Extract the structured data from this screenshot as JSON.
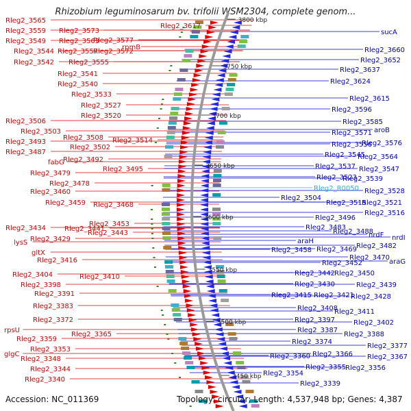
{
  "title": "Rhizobium leguminosarum bv. trifolii WSM2304, complete genom...",
  "accession": "Accession: NC_011369",
  "topology": "Topology: circular; Length: 4,537,948 bp; Genes: 4,387",
  "colors": {
    "left_label": "#d40000",
    "right_label": "#0000c8",
    "rna_label": "#2bb3c9",
    "backbone": "#9a9a9a",
    "tick": "#2a8a1c"
  },
  "kbp_ticks": [
    "3800 kbp",
    "3750 kbp",
    "3700 kbp",
    "3650 kbp",
    "3600 kbp",
    "3550 kbp",
    "3500 kbp",
    "3450 kbp"
  ],
  "left_labels": [
    "Rleg2_3565",
    "Rleg2_3559",
    "Rleg2_3549",
    "Rleg2_3544",
    "Rleg2_3542",
    "Rleg2_3573",
    "Rleg2_3563",
    "Rleg2_3557",
    "Rleg2_3555",
    "Rleg2_3541",
    "Rleg2_3540",
    "Rleg2_3533",
    "Rleg2_3527",
    "Rleg2_3520",
    "rpmB",
    "Rleg2_3577",
    "Rleg2_3572",
    "Rleg2_3617",
    "Rleg2_3506",
    "Rleg2_3503",
    "Rleg2_3493",
    "Rleg2_3487",
    "fabG",
    "Rleg2_3479",
    "Rleg2_3508",
    "Rleg2_3502",
    "Rleg2_3492",
    "Rleg2_3478",
    "Rleg2_3514",
    "Rleg2_3495",
    "Rleg2_3460",
    "Rleg2_3459",
    "Rleg2_3468",
    "Rleg2_3453",
    "Rleg2_3434",
    "Rleg2_3429",
    "lysS",
    "gltX",
    "Rleg2_3441",
    "Rleg2_3443",
    "Rleg2_3416",
    "Rleg2_3404",
    "Rleg2_3398",
    "Rleg2_3391",
    "Rleg2_3383",
    "Rleg2_3410",
    "Rleg2_3372",
    "rpsU",
    "Rleg2_3359",
    "Rleg2_3353",
    "glgC",
    "Rleg2_3348",
    "Rleg2_3344",
    "Rleg2_3340",
    "Rleg2_3365"
  ],
  "right_labels": [
    "sucA",
    "Rleg2_3660",
    "Rleg2_3652",
    "Rleg2_3637",
    "Rleg2_3624",
    "Rleg2_3615",
    "Rleg2_3596",
    "Rleg2_3585",
    "aroB",
    "Rleg2_3571",
    "Rleg2_3576",
    "Rleg2_3556",
    "Rleg2_3564",
    "Rleg2_3545",
    "Rleg2_3547",
    "Rleg2_3537",
    "Rleg2_3539",
    "Rleg2_3523",
    "Rleg2_3528",
    "Rleg2_R0050",
    "Rleg2_3521",
    "Rleg2_3504",
    "Rleg2_3515",
    "Rleg2_3516",
    "Rleg2_3496",
    "nrdF",
    "Rleg2_3488",
    "nrdI",
    "Rleg2_3483",
    "Rleg2_3482",
    "araH",
    "Rleg2_3469",
    "Rleg2_3470",
    "Rleg2_3458",
    "araG",
    "Rleg2_3452",
    "Rleg2_3442",
    "Rleg2_3450",
    "Rleg2_3430",
    "Rleg2_3439",
    "Rleg2_3415",
    "Rleg2_3421",
    "Rleg2_3428",
    "Rleg2_3408",
    "Rleg2_3411",
    "Rleg2_3397",
    "Rleg2_3402",
    "Rleg2_3387",
    "Rleg2_3388",
    "Rleg2_3374",
    "Rleg2_3377",
    "Rleg2_3366",
    "Rleg2_3367",
    "Rleg2_3360",
    "Rleg2_3355",
    "Rleg2_3356",
    "Rleg2_3354",
    "Rleg2_3339"
  ]
}
